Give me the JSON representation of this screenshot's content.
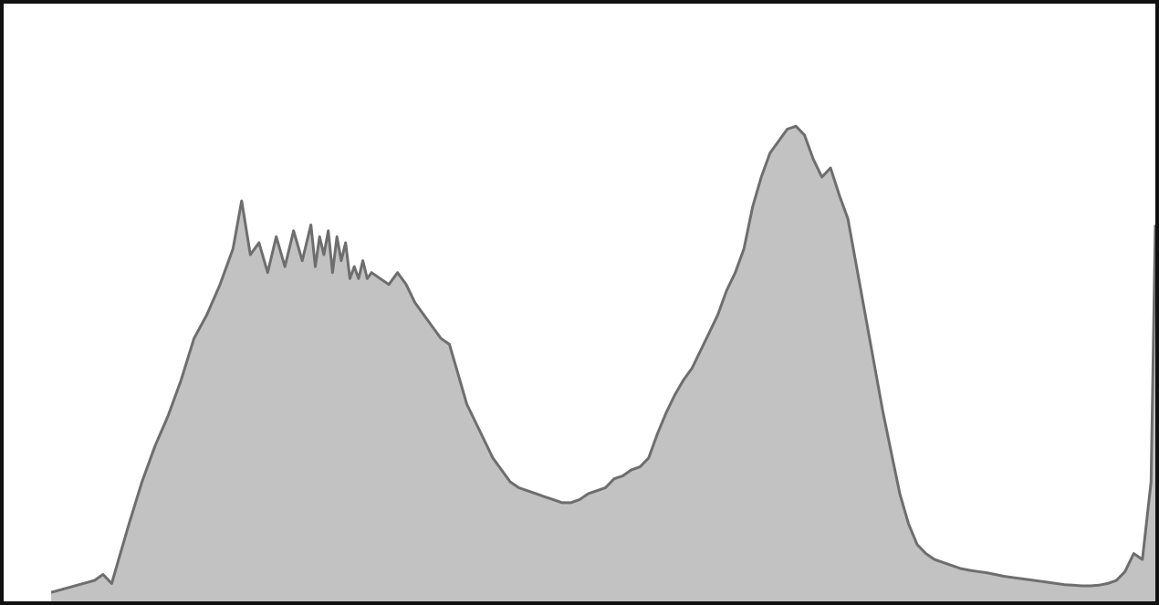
{
  "colors": {
    "fill": "#c2c2c2",
    "stroke": "#6e6e6e",
    "background": "#ffffff",
    "frame": "#111111"
  },
  "chart_data": {
    "type": "area",
    "title": "",
    "xlabel": "",
    "ylabel": "",
    "grid": false,
    "legend": "none",
    "xlim": [
      0,
      255
    ],
    "ylim": [
      0,
      100
    ],
    "x": [
      0,
      10,
      12,
      14,
      16,
      18,
      21,
      24,
      27,
      30,
      33,
      36,
      39,
      42,
      44,
      46,
      48,
      50,
      52,
      54,
      56,
      58,
      60,
      61,
      62,
      63,
      64,
      65,
      66,
      67,
      68,
      69,
      70,
      71,
      72,
      73,
      74,
      76,
      78,
      80,
      82,
      84,
      86,
      88,
      90,
      92,
      94,
      96,
      98,
      100,
      102,
      104,
      106,
      108,
      110,
      112,
      114,
      116,
      118,
      120,
      122,
      124,
      126,
      128,
      130,
      132,
      134,
      136,
      138,
      140,
      142,
      144,
      146,
      148,
      150,
      152,
      154,
      156,
      158,
      160,
      162,
      164,
      166,
      168,
      170,
      172,
      174,
      176,
      178,
      180,
      182,
      184,
      186,
      188,
      190,
      192,
      194,
      196,
      198,
      200,
      202,
      204,
      206,
      208,
      210,
      212,
      214,
      216,
      218,
      220,
      222,
      224,
      226,
      228,
      230,
      232,
      234,
      236,
      238,
      240,
      242,
      244,
      246,
      248,
      250,
      252,
      254,
      255
    ],
    "values": [
      1.5,
      3.5,
      4.5,
      3,
      8,
      13,
      20,
      26,
      31,
      37,
      44,
      48,
      53,
      59,
      67,
      58,
      60,
      55,
      61,
      56,
      62,
      57,
      63,
      56,
      61,
      58,
      62,
      55,
      61,
      57,
      60,
      54,
      56,
      54,
      57,
      54,
      55,
      54,
      53,
      55,
      53,
      50,
      48,
      46,
      44,
      43,
      38,
      33,
      30,
      27,
      24,
      22,
      20,
      19,
      18.5,
      18,
      17.5,
      17,
      16.5,
      16.5,
      17,
      18,
      18.5,
      19,
      20.5,
      21,
      22,
      22.5,
      24,
      28,
      31.5,
      34.5,
      37,
      39,
      42,
      45,
      48,
      52,
      55,
      59,
      66,
      71,
      75,
      77,
      79,
      79.5,
      78,
      74,
      71,
      72.5,
      68,
      64,
      56,
      48,
      40,
      32,
      25,
      18,
      13,
      9.5,
      8,
      7,
      6.5,
      6,
      5.5,
      5.2,
      5,
      4.8,
      4.5,
      4.2,
      4,
      3.8,
      3.6,
      3.4,
      3.2,
      3,
      2.8,
      2.7,
      2.6,
      2.6,
      2.7,
      3,
      3.5,
      5,
      8,
      7,
      20,
      63
    ]
  }
}
